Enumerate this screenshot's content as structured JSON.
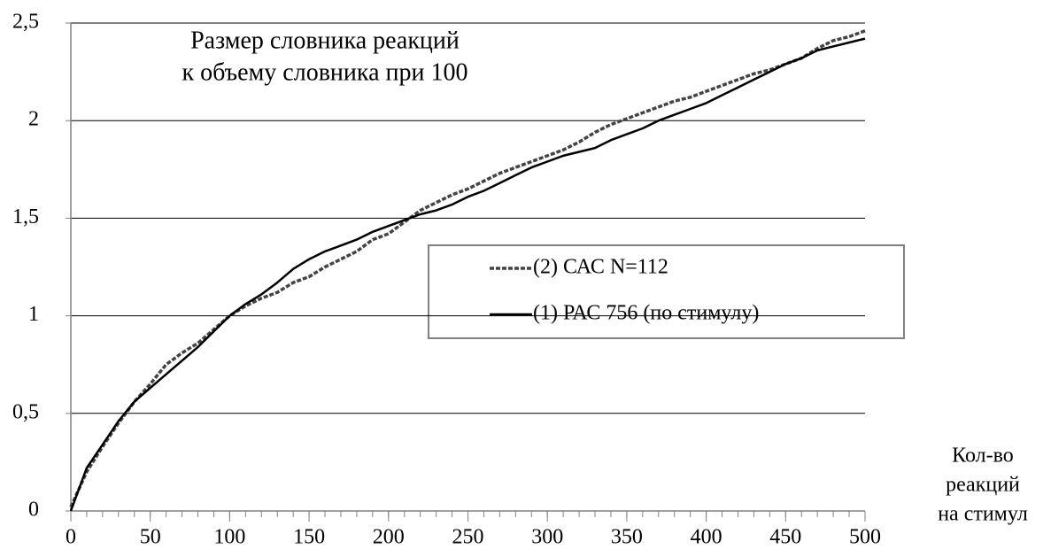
{
  "chart_data": {
    "type": "line",
    "title": [
      "Размер словника реакций",
      "к объему словника при 100"
    ],
    "xlabel": [
      "Кол-во",
      "реакций",
      "на стимул"
    ],
    "x": [
      0,
      10,
      20,
      30,
      40,
      50,
      60,
      70,
      80,
      90,
      100,
      110,
      120,
      130,
      140,
      150,
      160,
      170,
      180,
      190,
      200,
      210,
      220,
      230,
      240,
      250,
      260,
      270,
      280,
      290,
      300,
      310,
      320,
      330,
      340,
      350,
      360,
      370,
      380,
      390,
      400,
      410,
      420,
      430,
      440,
      450,
      460,
      470,
      480,
      490,
      500
    ],
    "series": [
      {
        "name": "(2) САС N=112",
        "color": "#444444",
        "dashed": true,
        "values": [
          0.02,
          0.2,
          0.33,
          0.45,
          0.56,
          0.65,
          0.75,
          0.81,
          0.86,
          0.93,
          1.0,
          1.05,
          1.09,
          1.12,
          1.17,
          1.2,
          1.25,
          1.29,
          1.33,
          1.39,
          1.42,
          1.48,
          1.54,
          1.58,
          1.62,
          1.65,
          1.69,
          1.73,
          1.76,
          1.79,
          1.82,
          1.85,
          1.89,
          1.94,
          1.98,
          2.01,
          2.04,
          2.07,
          2.1,
          2.12,
          2.15,
          2.18,
          2.21,
          2.24,
          2.26,
          2.29,
          2.32,
          2.37,
          2.41,
          2.43,
          2.46
        ]
      },
      {
        "name": "(1) РАС 756 (по стимулу)",
        "color": "#000000",
        "dashed": false,
        "values": [
          0.0,
          0.22,
          0.34,
          0.46,
          0.56,
          0.63,
          0.7,
          0.77,
          0.84,
          0.92,
          1.0,
          1.06,
          1.11,
          1.17,
          1.24,
          1.29,
          1.33,
          1.36,
          1.39,
          1.43,
          1.46,
          1.49,
          1.52,
          1.54,
          1.57,
          1.61,
          1.64,
          1.68,
          1.72,
          1.76,
          1.79,
          1.82,
          1.84,
          1.86,
          1.9,
          1.93,
          1.96,
          2.0,
          2.03,
          2.06,
          2.09,
          2.13,
          2.17,
          2.21,
          2.25,
          2.29,
          2.32,
          2.36,
          2.38,
          2.4,
          2.42
        ]
      }
    ],
    "xlim": [
      0,
      500
    ],
    "xticks": [
      0,
      50,
      100,
      150,
      200,
      250,
      300,
      350,
      400,
      450,
      500
    ],
    "ylim": [
      0,
      2.5
    ],
    "yticks": [
      {
        "value": 0,
        "label": "0"
      },
      {
        "value": 0.5,
        "label": "0,5"
      },
      {
        "value": 1,
        "label": "1"
      },
      {
        "value": 1.5,
        "label": "1,5"
      },
      {
        "value": 2,
        "label": "2"
      },
      {
        "value": 2.5,
        "label": "2,5"
      }
    ],
    "grid": true
  }
}
